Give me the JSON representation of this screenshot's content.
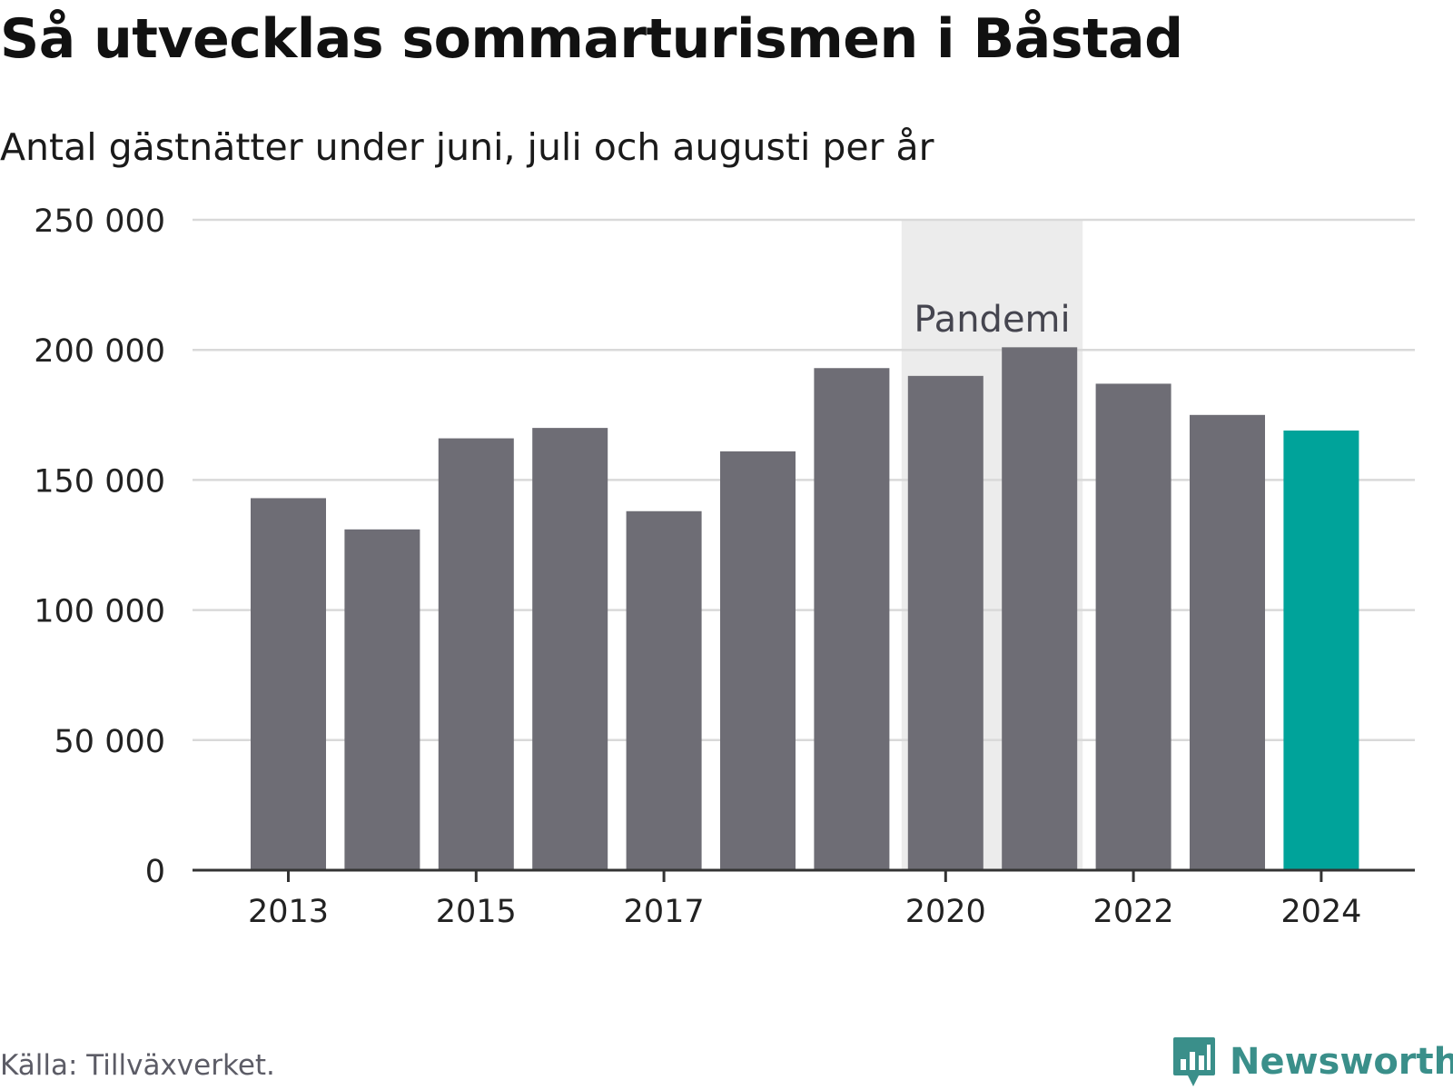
{
  "title": "Så utvecklas sommarturismen i Båstad",
  "subtitle": "Antal gästnätter under juni, juli och augusti per år",
  "source": "Källa: Tillväxverket.",
  "brand": {
    "name": "Newsworthy",
    "icon": "newsworthy-logo-icon"
  },
  "colors": {
    "bar": "#6e6d75",
    "highlight": "#00a39a",
    "band": "#ececec",
    "grid": "#d9d9d9",
    "axis": "#333333",
    "brand": "#3a8f8a"
  },
  "chart_data": {
    "type": "bar",
    "categories": [
      "2013",
      "2014",
      "2015",
      "2016",
      "2017",
      "2018",
      "2019",
      "2020",
      "2021",
      "2022",
      "2023",
      "2024"
    ],
    "values": [
      143000,
      131000,
      166000,
      170000,
      138000,
      161000,
      193000,
      190000,
      201000,
      187000,
      175000,
      169000
    ],
    "highlight_category": "2024",
    "x_tick_labels": [
      "2013",
      "2015",
      "2017",
      "2020",
      "2022",
      "2024"
    ],
    "y_ticks": [
      0,
      50000,
      100000,
      150000,
      200000,
      250000
    ],
    "y_tick_labels": [
      "0",
      "50 000",
      "100 000",
      "150 000",
      "200 000",
      "250 000"
    ],
    "ylim": [
      0,
      250000
    ],
    "annotation": {
      "label": "Pandemi",
      "from": "2020",
      "to": "2021"
    },
    "grid": true,
    "legend": false
  }
}
